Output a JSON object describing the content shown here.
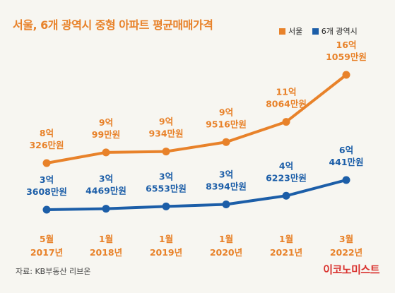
{
  "title": "서울, 6개 광역시 중형 아파트 평균매매가격",
  "source": "자료: KB부동산 리브온",
  "brand": "이코노미스트",
  "colors": {
    "seoul": "#e8822a",
    "metro": "#1c5ea8",
    "brand": "#d9302c",
    "background": "#f7f6f1"
  },
  "chart_data": {
    "type": "line",
    "title": "서울, 6개 광역시 중형 아파트 평균매매가격",
    "unit": "만원",
    "categories": [
      [
        "5월",
        "2017년"
      ],
      [
        "1월",
        "2018년"
      ],
      [
        "1월",
        "2019년"
      ],
      [
        "1월",
        "2020년"
      ],
      [
        "1월",
        "2021년"
      ],
      [
        "3월",
        "2022년"
      ]
    ],
    "legend_position": "top-right",
    "grid": false,
    "ylim": [
      0,
      180000
    ],
    "series": [
      {
        "name": "서울",
        "color": "#e8822a",
        "values": [
          80326,
          90099,
          90934,
          99516,
          118064,
          161059
        ],
        "labels": [
          [
            "8억",
            "326만원"
          ],
          [
            "9억",
            "99만원"
          ],
          [
            "9억",
            "934만원"
          ],
          [
            "9억",
            "9516만원"
          ],
          [
            "11억",
            "8064만원"
          ],
          [
            "16억",
            "1059만원"
          ]
        ]
      },
      {
        "name": "6개 광역시",
        "color": "#1c5ea8",
        "values": [
          33608,
          34469,
          36553,
          38394,
          46223,
          60441
        ],
        "labels": [
          [
            "3억",
            "3608만원"
          ],
          [
            "3억",
            "4469만원"
          ],
          [
            "3억",
            "6553만원"
          ],
          [
            "3억",
            "8394만원"
          ],
          [
            "4억",
            "6223만원"
          ],
          [
            "6억",
            "441만원"
          ]
        ]
      }
    ]
  }
}
